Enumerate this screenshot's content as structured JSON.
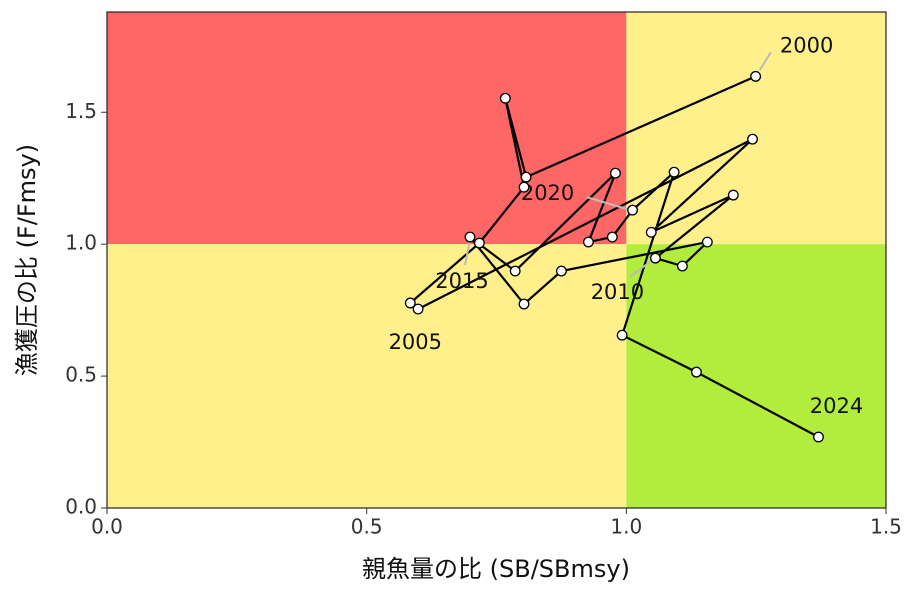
{
  "chart_data": {
    "type": "scatter-path",
    "x_label": "親魚量の比 (SB/SBmsy)",
    "y_label": "漁獲圧の比 (F/Fmsy)",
    "xlim": [
      0,
      1.5
    ],
    "ylim": [
      0,
      1.88
    ],
    "xticks": [
      {
        "value": 0,
        "label": "0.0"
      },
      {
        "value": 0.5,
        "label": "0.5"
      },
      {
        "value": 1,
        "label": "1.0"
      },
      {
        "value": 1.5,
        "label": "1.5"
      }
    ],
    "yticks": [
      {
        "value": 0,
        "label": "0.0"
      },
      {
        "value": 0.5,
        "label": "0.5"
      },
      {
        "value": 1,
        "label": "1.0"
      },
      {
        "value": 1.5,
        "label": "1.5"
      }
    ],
    "quadrants": {
      "x": 1,
      "y": 1,
      "colors": {
        "top_left": "#ff6666",
        "top_right": "#fff08c",
        "bottom_left": "#fff08c",
        "bottom_right": "#b2ec3c"
      }
    },
    "color": "#000000",
    "x": [
      1.249,
      0.807,
      0.767,
      0.803,
      0.717,
      0.584,
      0.599,
      1.243,
      1.048,
      1.206,
      1.056,
      1.108,
      1.156,
      0.875,
      0.803,
      0.699,
      0.786,
      0.979,
      0.927,
      0.973,
      1.012,
      1.092,
      0.992,
      1.135,
      1.37
    ],
    "y": [
      1.636,
      1.254,
      1.553,
      1.216,
      1.004,
      0.777,
      0.754,
      1.398,
      1.045,
      1.186,
      0.947,
      0.917,
      1.008,
      0.898,
      0.773,
      1.027,
      0.898,
      1.269,
      1.008,
      1.027,
      1.129,
      1.273,
      0.655,
      0.515,
      0.269
    ],
    "point_labels": [
      "2000",
      null,
      null,
      null,
      null,
      "2005",
      null,
      null,
      null,
      null,
      "2010",
      null,
      null,
      null,
      null,
      "2015",
      null,
      null,
      null,
      null,
      "2020",
      null,
      null,
      null,
      "2024"
    ]
  }
}
